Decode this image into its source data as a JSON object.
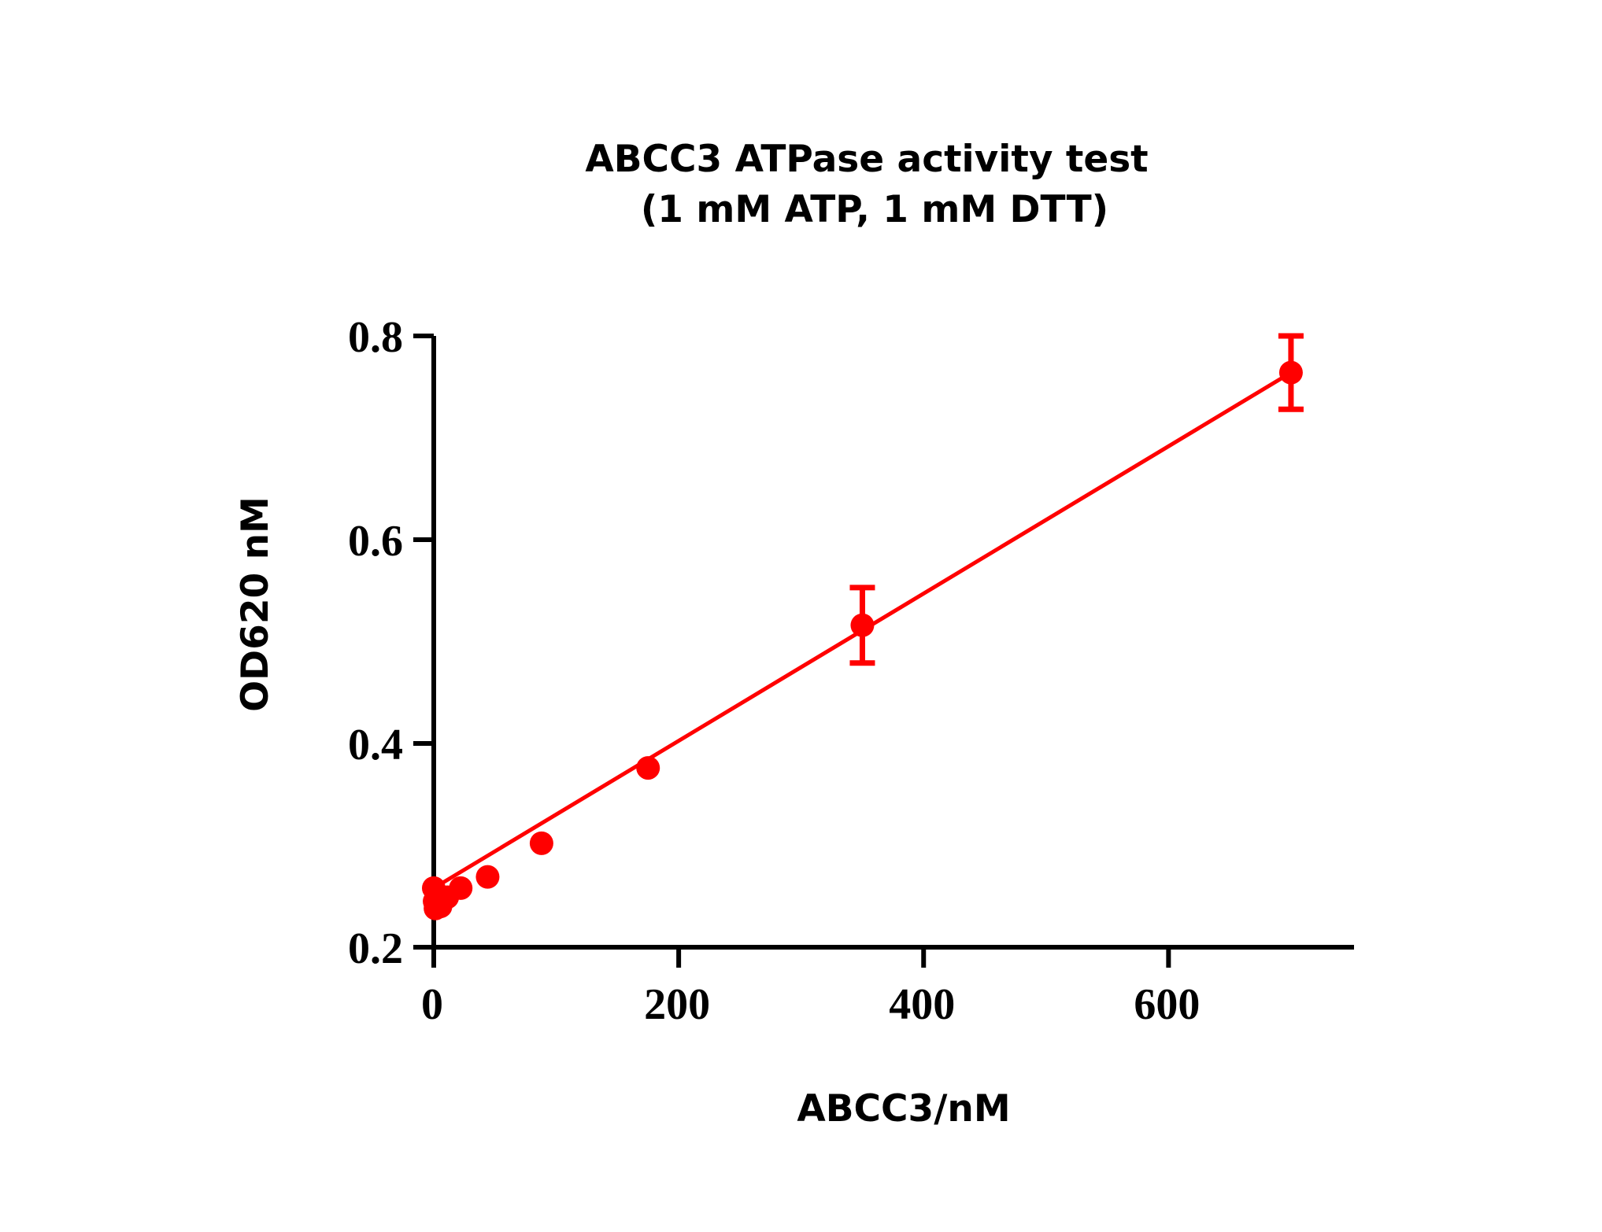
{
  "chart_data": {
    "type": "scatter",
    "title": "ABCC3 ATPase activity test",
    "subtitle": "(1 mM ATP, 1 mM DTT)",
    "xlabel": "ABCC3/nM",
    "ylabel": "OD620 nM",
    "xlim": [
      0,
      750
    ],
    "ylim": [
      0.2,
      0.8
    ],
    "xticks": [
      0,
      200,
      400,
      600
    ],
    "xtick_labels": [
      "0",
      "200",
      "400",
      "600"
    ],
    "yticks": [
      0.2,
      0.4,
      0.6,
      0.8
    ],
    "ytick_labels": [
      "0.2",
      "0.4",
      "0.6",
      "0.8"
    ],
    "grid": false,
    "color": "#ff0000",
    "series": [
      {
        "points": [
          {
            "x": 0,
            "y": 0.258
          },
          {
            "x": 0.7,
            "y": 0.245
          },
          {
            "x": 1.4,
            "y": 0.238
          },
          {
            "x": 2.7,
            "y": 0.24
          },
          {
            "x": 5.5,
            "y": 0.24
          },
          {
            "x": 11,
            "y": 0.249
          },
          {
            "x": 22,
            "y": 0.258
          },
          {
            "x": 44,
            "y": 0.269
          },
          {
            "x": 88,
            "y": 0.302
          },
          {
            "x": 175,
            "y": 0.376
          },
          {
            "x": 350,
            "y": 0.516,
            "err": 0.037
          },
          {
            "x": 700,
            "y": 0.764,
            "err": 0.036
          }
        ],
        "fit": {
          "x": [
            0,
            700
          ],
          "y": [
            0.258,
            0.764
          ]
        }
      }
    ]
  }
}
